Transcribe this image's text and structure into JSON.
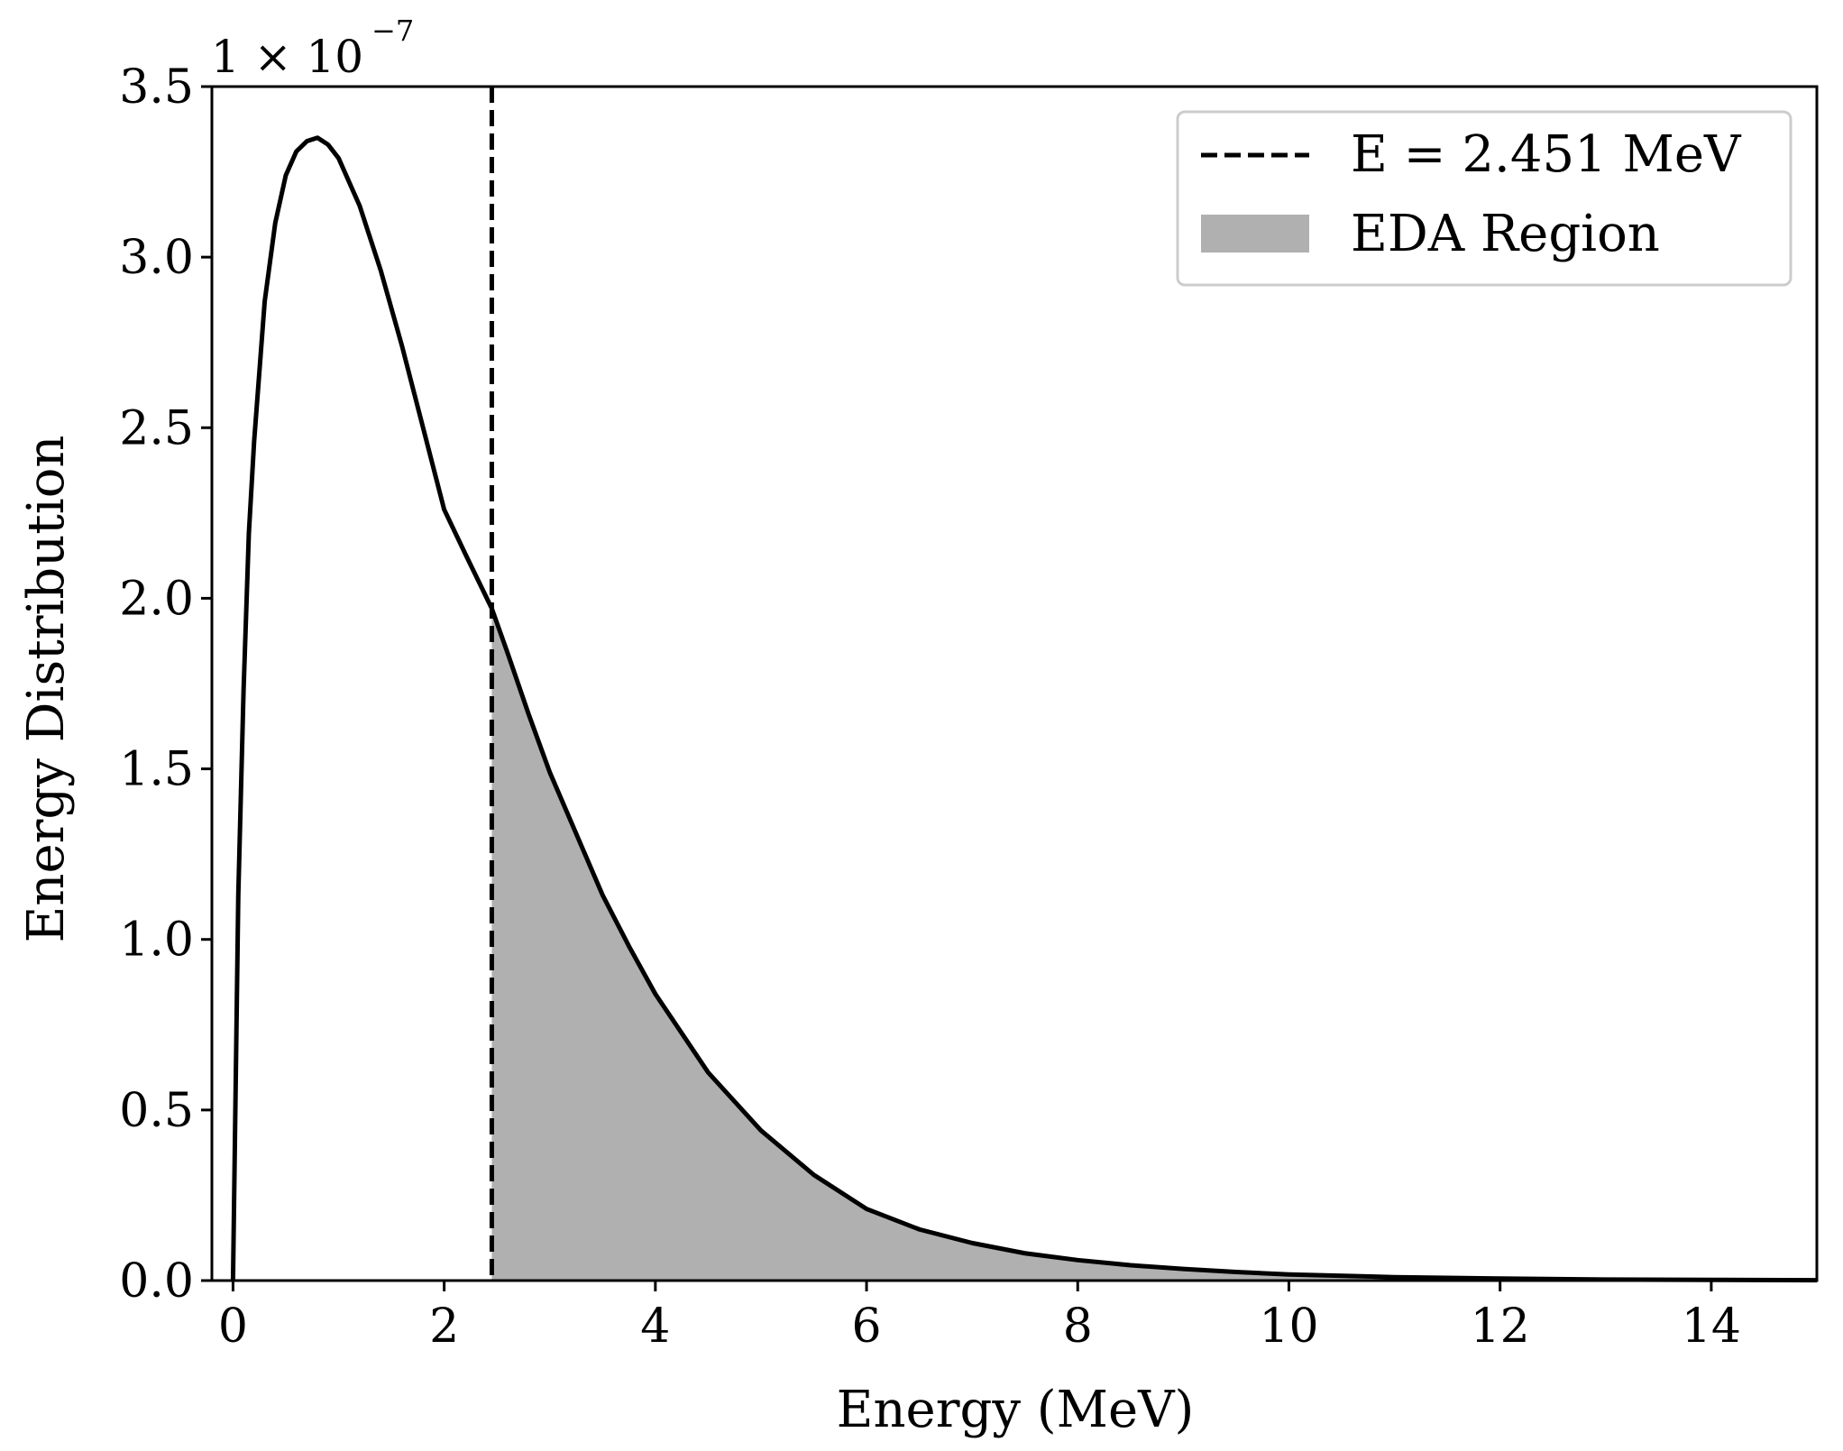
{
  "chart_data": {
    "type": "area",
    "xlabel": "Energy (MeV)",
    "ylabel": "Energy Distribution",
    "y_multiplier": {
      "base": "1 × 10",
      "exponent": "−7"
    },
    "xlim": [
      -0.2,
      15
    ],
    "ylim": [
      0,
      3.5
    ],
    "x_ticks": [
      0,
      2,
      4,
      6,
      8,
      10,
      12,
      14
    ],
    "x_tick_labels": [
      "0",
      "2",
      "4",
      "6",
      "8",
      "10",
      "12",
      "14"
    ],
    "y_ticks": [
      0,
      0.5,
      1.0,
      1.5,
      2.0,
      2.5,
      3.0,
      3.5
    ],
    "y_tick_labels": [
      "0.0",
      "0.5",
      "1.0",
      "1.5",
      "2.0",
      "2.5",
      "3.0",
      "3.5"
    ],
    "grid": false,
    "legend_placement": "top-right",
    "series": [
      {
        "kind": "line",
        "color": "#000000",
        "x": [
          0,
          0.05,
          0.1,
          0.15,
          0.2,
          0.3,
          0.4,
          0.5,
          0.6,
          0.7,
          0.8,
          0.9,
          1.0,
          1.2,
          1.4,
          1.6,
          1.8,
          2.0,
          2.2,
          2.451,
          2.6,
          2.8,
          3.0,
          3.25,
          3.5,
          3.75,
          4.0,
          4.5,
          5.0,
          5.5,
          6.0,
          6.5,
          7.0,
          7.5,
          8.0,
          8.5,
          9.0,
          9.5,
          10.0,
          11.0,
          12.0,
          13.0,
          14.0,
          15.0
        ],
        "y": [
          0,
          1.13,
          1.73,
          2.19,
          2.46,
          2.87,
          3.1,
          3.24,
          3.31,
          3.34,
          3.35,
          3.33,
          3.29,
          3.15,
          2.96,
          2.74,
          2.5,
          2.26,
          2.13,
          1.97,
          1.84,
          1.66,
          1.49,
          1.31,
          1.13,
          0.98,
          0.84,
          0.61,
          0.44,
          0.31,
          0.21,
          0.15,
          0.11,
          0.08,
          0.06,
          0.045,
          0.034,
          0.025,
          0.018,
          0.01,
          0.006,
          0.003,
          0.002,
          0.001
        ]
      },
      {
        "kind": "vline",
        "name": "E = 2.451 MeV",
        "x": 2.451,
        "style": "dashed",
        "color": "#000000"
      },
      {
        "kind": "fill",
        "name": "EDA Region",
        "x_from": 2.451,
        "x_to": 15,
        "color": "#b0b0b0"
      }
    ],
    "legend": [
      {
        "label": "E = 2.451 MeV",
        "symbol": "dashed-line"
      },
      {
        "label": "EDA Region",
        "symbol": "gray-patch"
      }
    ]
  }
}
